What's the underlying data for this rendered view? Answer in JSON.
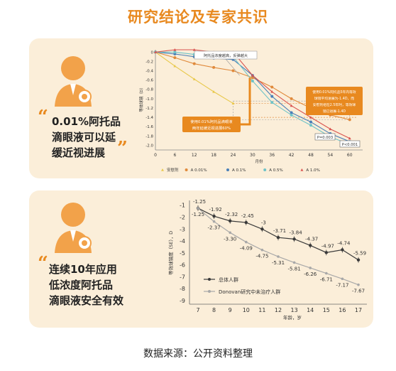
{
  "title": "研究结论及专家共识",
  "footer": "数据来源：公开资料整理",
  "panel1": {
    "quote_lines": [
      "0.01%阿托品",
      "滴眼液可以延",
      "缓近视进展"
    ]
  },
  "panel2": {
    "quote_lines": [
      "连续10年应用",
      "低浓度阿托品",
      "滴眼液安全有效"
    ]
  },
  "colors": {
    "accent": "#e8891f",
    "panel_bg": "#fbeed9"
  },
  "chart_data": [
    {
      "type": "line",
      "xlabel": "月份",
      "ylabel": "等效球镜（D）",
      "x": [
        0,
        6,
        12,
        18,
        24,
        30,
        36,
        42,
        48,
        54,
        60
      ],
      "xlim": [
        0,
        64
      ],
      "ylim": [
        -2.1,
        0.05
      ],
      "yticks": [
        0,
        -0.2,
        -0.4,
        -0.6,
        -0.8,
        -1.0,
        -1.2,
        -1.4,
        -1.6,
        -1.8,
        -2.0
      ],
      "ytick_labels": [
        "0",
        "-0.2",
        "-0.4",
        "-0.6",
        "-0.8",
        "-1.0",
        "-1.2",
        "-1.4",
        "-1.6",
        "-1.8",
        "-2.0"
      ],
      "series": [
        {
          "name": "安慰剂",
          "color": "#e8c84a",
          "marker": "triangle",
          "x": [
            0,
            6,
            12,
            18,
            24
          ],
          "values": [
            0,
            -0.3,
            -0.58,
            -0.85,
            -1.1
          ]
        },
        {
          "name": "A 0.01%",
          "color": "#e08a3c",
          "marker": "circle",
          "x": [
            0,
            6,
            12,
            18,
            24,
            30,
            36,
            42,
            48,
            54,
            60
          ],
          "values": [
            0,
            -0.12,
            -0.25,
            -0.33,
            -0.4,
            -0.55,
            -0.75,
            -1.0,
            -1.2,
            -1.35,
            -1.45
          ]
        },
        {
          "name": "A 0.1%",
          "color": "#4a7fb8",
          "marker": "circle",
          "x": [
            0,
            6,
            12,
            18,
            24,
            30,
            36,
            42,
            48,
            54,
            60
          ],
          "values": [
            0,
            -0.04,
            -0.1,
            -0.13,
            -0.16,
            -0.5,
            -0.95,
            -1.3,
            -1.5,
            -1.75,
            -1.92
          ]
        },
        {
          "name": "A 0.5%",
          "color": "#6fc3c8",
          "marker": "circle",
          "x": [
            0,
            6,
            12,
            18,
            24,
            30,
            36,
            42,
            48,
            54,
            60
          ],
          "values": [
            0,
            0.0,
            -0.05,
            -0.05,
            -0.1,
            -0.62,
            -1.08,
            -1.35,
            -1.57,
            -1.82,
            -1.98
          ]
        },
        {
          "name": "A 1.0%",
          "color": "#d9534f",
          "marker": "triangle",
          "x": [
            0,
            6,
            12,
            18,
            24,
            30,
            36,
            42,
            48,
            54,
            60
          ],
          "values": [
            0,
            0.05,
            0.05,
            0.0,
            0.0,
            -0.5,
            -0.85,
            -1.15,
            -1.4,
            -1.65,
            -1.85
          ]
        }
      ],
      "annotations": [
        "阿托品浓度越高，反弹越大",
        "使用0.01%阿托品滴眼液两年延缓近视进展60%",
        "使用0.01%阿托品5年内等效球镜平均进展为-1.4D，而安慰剂组在2.5年时，等效球镜已进展-1.4D",
        "P=0.003",
        "P<0.001"
      ]
    },
    {
      "type": "line",
      "xlabel": "年龄，岁",
      "ylabel": "等效球镜度（SE），D",
      "categories": [
        "7",
        "8",
        "9",
        "10",
        "11",
        "12",
        "13",
        "14",
        "15",
        "16",
        "17"
      ],
      "ylim": [
        -9.3,
        -0.6
      ],
      "yticks": [
        -1,
        -2,
        -3,
        -4,
        -5,
        -6,
        -7,
        -8,
        -9
      ],
      "ytick_labels": [
        "-1",
        "-2",
        "-3",
        "-4",
        "-5",
        "-6",
        "-7",
        "-8",
        "-9"
      ],
      "series": [
        {
          "name": "总体人群",
          "color": "#3a3a3a",
          "marker": "circle",
          "values": [
            -1.25,
            -1.92,
            -2.32,
            -2.45,
            -3,
            -3.71,
            -3.84,
            -4.37,
            -4.97,
            -4.74,
            -5.59
          ],
          "labels": [
            "-1.25",
            "-1.92",
            "-2.32",
            "-2.45",
            "-3",
            "-3.71",
            "-3.84",
            "-4.37",
            "-4.97",
            "-4.74",
            "-5.59"
          ]
        },
        {
          "name": "Donovan研究中未治疗人群",
          "color": "#a8a8a8",
          "marker": "circle",
          "values": [
            -1.25,
            -2.37,
            -3.3,
            -4.09,
            -4.75,
            -5.31,
            -5.81,
            -6.26,
            -6.71,
            -7.17,
            -7.67
          ],
          "labels": [
            "-1.25",
            "-2.37",
            "-3.30",
            "-4.09",
            "-4.75",
            "-5.31",
            "-5.81",
            "-6.26",
            "-6.71",
            "-7.17",
            "-7.67"
          ]
        }
      ]
    }
  ]
}
